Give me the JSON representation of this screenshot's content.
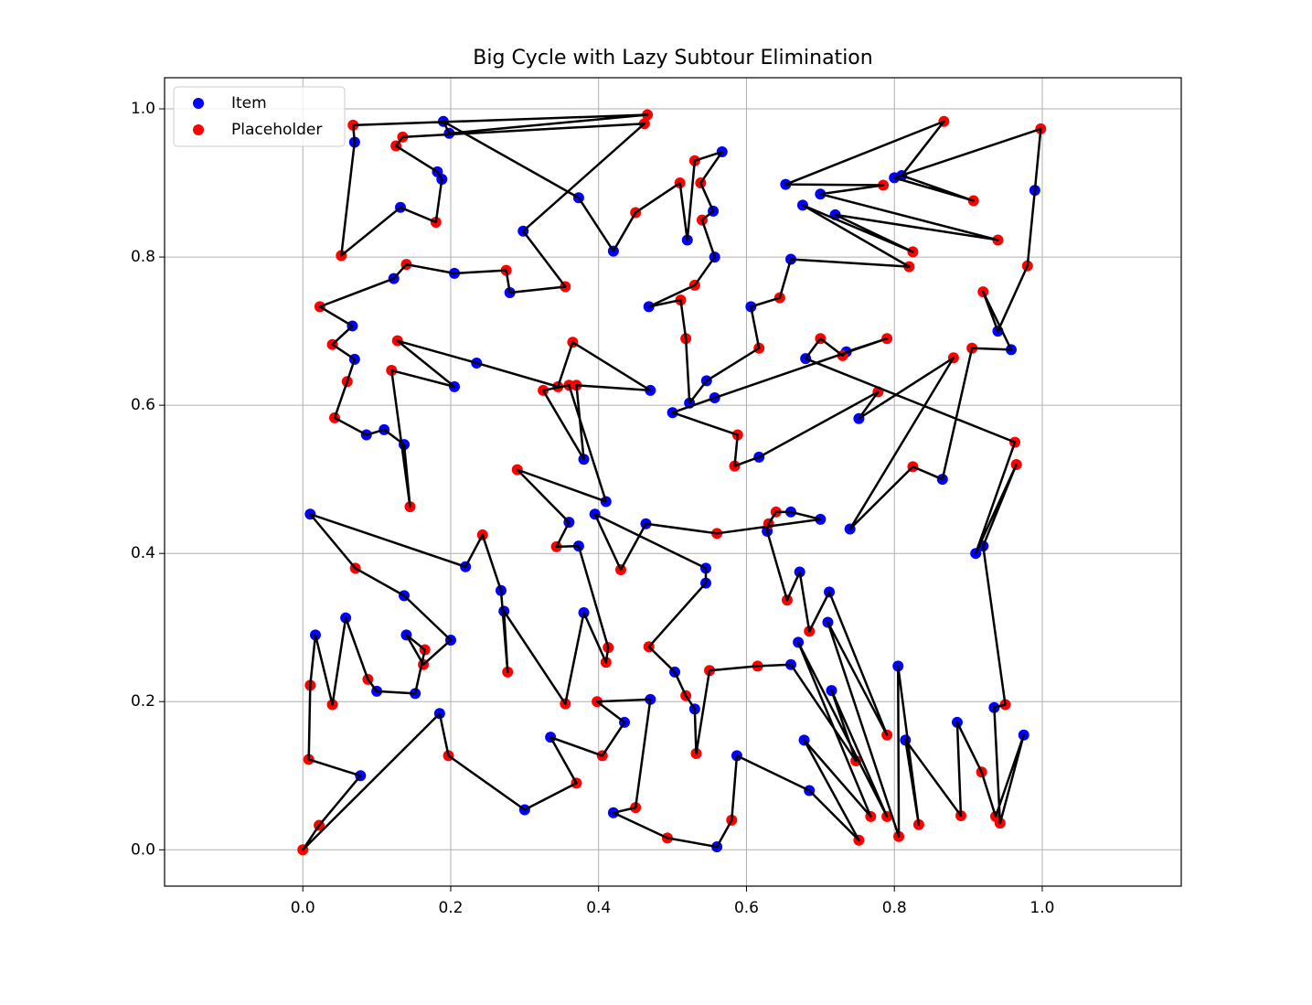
{
  "chart_data": {
    "type": "scatter",
    "title": "Big Cycle with Lazy Subtour Elimination",
    "xlim": [
      -0.187,
      1.188
    ],
    "ylim": [
      -0.049,
      1.042
    ],
    "xticks": [
      {
        "value": 0,
        "label": "0.0"
      },
      0.2,
      0.4,
      0.6,
      0.8,
      {
        "value": 1,
        "label": "1.0"
      }
    ],
    "yticks": [
      {
        "value": 0,
        "label": "0.0"
      },
      0.2,
      0.4,
      0.6,
      0.8,
      {
        "value": 1,
        "label": "1.0"
      }
    ],
    "grid": true,
    "legend": "upper left",
    "series": [
      {
        "name": "Item",
        "color": "#0000ff",
        "x": [
          0.078,
          0.017,
          0.058,
          0.1,
          0.152,
          0.14,
          0.2,
          0.137,
          0.01,
          0.22,
          0.268,
          0.272,
          0.38,
          0.373,
          0.36,
          0.41,
          0.38,
          0.47,
          0.235,
          0.205,
          0.137,
          0.11,
          0.086,
          0.07,
          0.067,
          0.123,
          0.205,
          0.28,
          0.298,
          0.182,
          0.188,
          0.132,
          0.07,
          0.198,
          0.19,
          0.373,
          0.42,
          0.52,
          0.567,
          0.555,
          0.557,
          0.468,
          0.523,
          0.546,
          0.606,
          0.66,
          0.676,
          0.72,
          0.7,
          0.653,
          0.81,
          0.8,
          0.99,
          0.94,
          0.958,
          0.865,
          0.74,
          0.752,
          0.617,
          0.5,
          0.557,
          0.735,
          0.68,
          0.91,
          0.92,
          0.935,
          0.975,
          0.885,
          0.815,
          0.805,
          0.71,
          0.712,
          0.672,
          0.628,
          0.66,
          0.7,
          0.464,
          0.395,
          0.545,
          0.545,
          0.503,
          0.53,
          0.66,
          0.715,
          0.67,
          0.678,
          0.685,
          0.587,
          0.56,
          0.42,
          0.47,
          0.435,
          0.335,
          0.3,
          0.185
        ],
        "y": [
          0.1,
          0.29,
          0.313,
          0.214,
          0.211,
          0.29,
          0.283,
          0.343,
          0.453,
          0.382,
          0.35,
          0.322,
          0.32,
          0.41,
          0.442,
          0.47,
          0.527,
          0.62,
          0.657,
          0.625,
          0.547,
          0.567,
          0.56,
          0.662,
          0.707,
          0.771,
          0.778,
          0.752,
          0.835,
          0.915,
          0.905,
          0.867,
          0.955,
          0.967,
          0.983,
          0.88,
          0.808,
          0.823,
          0.942,
          0.862,
          0.8,
          0.733,
          0.603,
          0.633,
          0.733,
          0.797,
          0.87,
          0.857,
          0.885,
          0.898,
          0.91,
          0.907,
          0.89,
          0.7,
          0.675,
          0.5,
          0.433,
          0.582,
          0.53,
          0.59,
          0.61,
          0.672,
          0.663,
          0.4,
          0.41,
          0.192,
          0.155,
          0.172,
          0.148,
          0.248,
          0.307,
          0.348,
          0.375,
          0.43,
          0.456,
          0.446,
          0.44,
          0.453,
          0.38,
          0.36,
          0.24,
          0.19,
          0.25,
          0.215,
          0.28,
          0.148,
          0.08,
          0.127,
          0.004,
          0.05,
          0.203,
          0.172,
          0.152,
          0.054,
          0.184
        ]
      },
      {
        "name": "Placeholder",
        "color": "#ff0000",
        "x": [
          0,
          0.022,
          0.008,
          0.01,
          0.04,
          0.088,
          0.165,
          0.163,
          0.071,
          0.243,
          0.277,
          0.355,
          0.41,
          0.413,
          0.343,
          0.29,
          0.36,
          0.325,
          0.37,
          0.365,
          0.345,
          0.128,
          0.12,
          0.145,
          0.043,
          0.06,
          0.04,
          0.023,
          0.14,
          0.275,
          0.355,
          0.462,
          0.135,
          0.126,
          0.18,
          0.052,
          0.068,
          0.466,
          0.45,
          0.51,
          0.53,
          0.538,
          0.54,
          0.53,
          0.511,
          0.518,
          0.617,
          0.645,
          0.82,
          0.825,
          0.94,
          0.785,
          0.867,
          0.907,
          0.998,
          0.98,
          0.92,
          0.905,
          0.825,
          0.88,
          0.778,
          0.584,
          0.588,
          0.79,
          0.73,
          0.7,
          0.963,
          0.965,
          0.95,
          0.943,
          0.937,
          0.918,
          0.89,
          0.833,
          0.806,
          0.79,
          0.685,
          0.655,
          0.63,
          0.64,
          0.56,
          0.43,
          0.468,
          0.518,
          0.532,
          0.55,
          0.615,
          0.748,
          0.79,
          0.768,
          0.752,
          0.58,
          0.493,
          0.45,
          0.398,
          0.405,
          0.37,
          0.197
        ],
        "y": [
          0,
          0.033,
          0.122,
          0.222,
          0.196,
          0.23,
          0.27,
          0.25,
          0.38,
          0.425,
          0.24,
          0.197,
          0.253,
          0.273,
          0.409,
          0.513,
          0.627,
          0.62,
          0.627,
          0.685,
          0.625,
          0.687,
          0.647,
          0.463,
          0.583,
          0.632,
          0.682,
          0.733,
          0.79,
          0.782,
          0.76,
          0.98,
          0.962,
          0.95,
          0.847,
          0.802,
          0.978,
          0.992,
          0.86,
          0.9,
          0.93,
          0.9,
          0.85,
          0.762,
          0.742,
          0.69,
          0.677,
          0.745,
          0.787,
          0.807,
          0.823,
          0.897,
          0.983,
          0.876,
          0.973,
          0.788,
          0.753,
          0.677,
          0.517,
          0.664,
          0.618,
          0.518,
          0.56,
          0.69,
          0.667,
          0.69,
          0.55,
          0.52,
          0.196,
          0.036,
          0.045,
          0.105,
          0.046,
          0.034,
          0.018,
          0.155,
          0.295,
          0.337,
          0.44,
          0.456,
          0.427,
          0.378,
          0.274,
          0.208,
          0.13,
          0.242,
          0.248,
          0.12,
          0.045,
          0.045,
          0.013,
          0.04,
          0.016,
          0.057,
          0.2,
          0.127,
          0.09,
          0.127
        ]
      }
    ],
    "path": {
      "color": "#000000",
      "x": [
        0,
        0.022,
        0.078,
        0.008,
        0.01,
        0.017,
        0.04,
        0.058,
        0.088,
        0.1,
        0.152,
        0.165,
        0.14,
        0.163,
        0.2,
        0.137,
        0.071,
        0.01,
        0.22,
        0.243,
        0.268,
        0.277,
        0.272,
        0.355,
        0.38,
        0.41,
        0.413,
        0.373,
        0.343,
        0.36,
        0.29,
        0.41,
        0.36,
        0.325,
        0.38,
        0.37,
        0.47,
        0.365,
        0.345,
        0.235,
        0.128,
        0.205,
        0.12,
        0.145,
        0.137,
        0.11,
        0.086,
        0.043,
        0.06,
        0.07,
        0.04,
        0.067,
        0.023,
        0.123,
        0.14,
        0.205,
        0.275,
        0.28,
        0.355,
        0.298,
        0.462,
        0.135,
        0.126,
        0.182,
        0.188,
        0.18,
        0.132,
        0.052,
        0.07,
        0.068,
        0.466,
        0.198,
        0.19,
        0.373,
        0.42,
        0.45,
        0.51,
        0.52,
        0.53,
        0.567,
        0.538,
        0.555,
        0.54,
        0.557,
        0.53,
        0.468,
        0.511,
        0.518,
        0.523,
        0.546,
        0.617,
        0.606,
        0.645,
        0.66,
        0.82,
        0.676,
        0.825,
        0.72,
        0.94,
        0.7,
        0.785,
        0.653,
        0.867,
        0.81,
        0.907,
        0.8,
        0.998,
        0.99,
        0.98,
        0.94,
        0.92,
        0.958,
        0.905,
        0.865,
        0.825,
        0.74,
        0.88,
        0.752,
        0.778,
        0.617,
        0.584,
        0.588,
        0.5,
        0.557,
        0.79,
        0.735,
        0.73,
        0.7,
        0.68,
        0.963,
        0.91,
        0.965,
        0.92,
        0.95,
        0.935,
        0.943,
        0.975,
        0.937,
        0.918,
        0.885,
        0.89,
        0.815,
        0.833,
        0.805,
        0.806,
        0.71,
        0.79,
        0.712,
        0.685,
        0.672,
        0.655,
        0.628,
        0.63,
        0.64,
        0.66,
        0.7,
        0.56,
        0.464,
        0.43,
        0.395,
        0.545,
        0.545,
        0.468,
        0.503,
        0.518,
        0.53,
        0.532,
        0.55,
        0.615,
        0.66,
        0.748,
        0.715,
        0.79,
        0.67,
        0.768,
        0.678,
        0.752,
        0.685,
        0.587,
        0.58,
        0.56,
        0.493,
        0.42,
        0.45,
        0.47,
        0.398,
        0.435,
        0.405,
        0.335,
        0.37,
        0.3,
        0.197,
        0.185
      ],
      "y": [
        0,
        0.033,
        0.1,
        0.122,
        0.222,
        0.29,
        0.196,
        0.313,
        0.23,
        0.214,
        0.211,
        0.27,
        0.29,
        0.25,
        0.283,
        0.343,
        0.38,
        0.453,
        0.382,
        0.425,
        0.35,
        0.24,
        0.322,
        0.197,
        0.32,
        0.253,
        0.273,
        0.41,
        0.409,
        0.442,
        0.513,
        0.47,
        0.627,
        0.62,
        0.527,
        0.627,
        0.62,
        0.685,
        0.625,
        0.657,
        0.687,
        0.625,
        0.647,
        0.463,
        0.547,
        0.567,
        0.56,
        0.583,
        0.632,
        0.662,
        0.682,
        0.707,
        0.733,
        0.771,
        0.79,
        0.778,
        0.782,
        0.752,
        0.76,
        0.835,
        0.98,
        0.962,
        0.95,
        0.915,
        0.905,
        0.847,
        0.867,
        0.802,
        0.955,
        0.978,
        0.992,
        0.967,
        0.983,
        0.88,
        0.808,
        0.86,
        0.9,
        0.823,
        0.93,
        0.942,
        0.9,
        0.862,
        0.85,
        0.8,
        0.762,
        0.733,
        0.742,
        0.69,
        0.603,
        0.633,
        0.677,
        0.733,
        0.745,
        0.797,
        0.787,
        0.87,
        0.807,
        0.857,
        0.823,
        0.885,
        0.897,
        0.898,
        0.983,
        0.91,
        0.876,
        0.907,
        0.973,
        0.89,
        0.788,
        0.7,
        0.753,
        0.675,
        0.677,
        0.5,
        0.517,
        0.433,
        0.664,
        0.582,
        0.618,
        0.53,
        0.518,
        0.56,
        0.59,
        0.61,
        0.69,
        0.672,
        0.667,
        0.69,
        0.663,
        0.55,
        0.4,
        0.52,
        0.41,
        0.196,
        0.192,
        0.036,
        0.155,
        0.045,
        0.105,
        0.172,
        0.046,
        0.148,
        0.034,
        0.248,
        0.018,
        0.307,
        0.155,
        0.348,
        0.295,
        0.375,
        0.337,
        0.43,
        0.44,
        0.456,
        0.456,
        0.446,
        0.427,
        0.44,
        0.378,
        0.453,
        0.38,
        0.36,
        0.274,
        0.24,
        0.208,
        0.19,
        0.13,
        0.242,
        0.248,
        0.25,
        0.12,
        0.215,
        0.045,
        0.28,
        0.045,
        0.148,
        0.013,
        0.08,
        0.127,
        0.04,
        0.004,
        0.016,
        0.05,
        0.057,
        0.203,
        0.2,
        0.172,
        0.127,
        0.152,
        0.09,
        0.054,
        0.127,
        0.184
      ]
    }
  }
}
